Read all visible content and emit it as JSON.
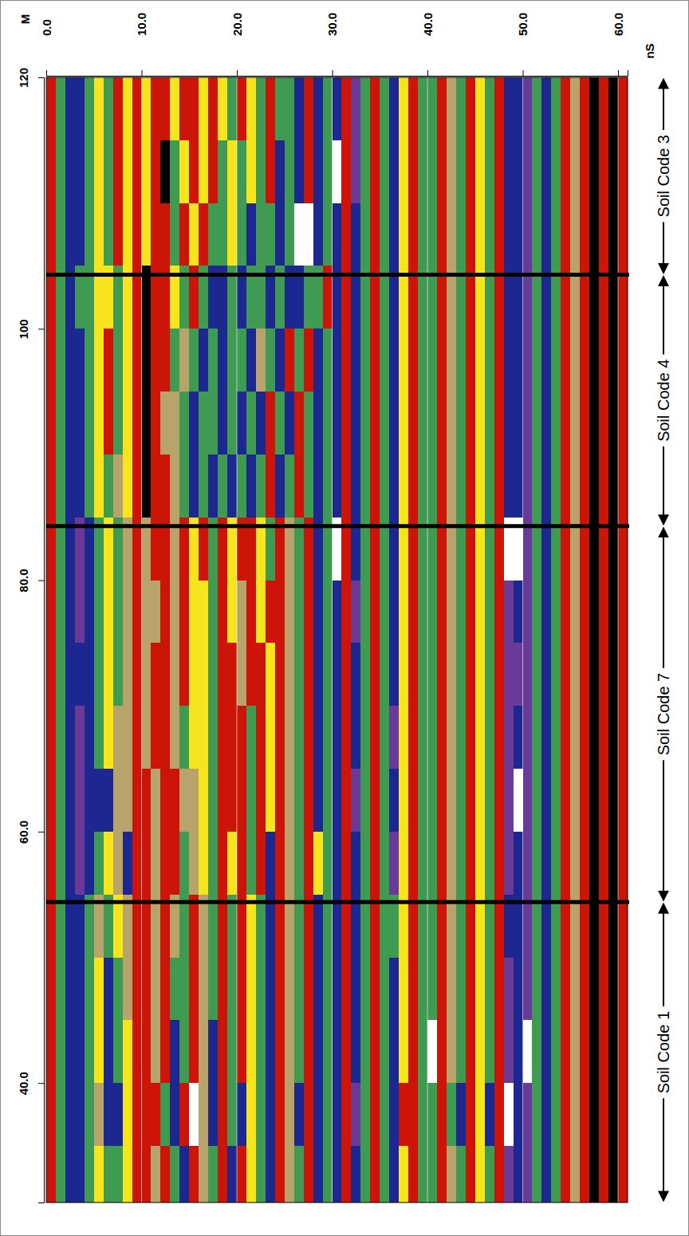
{
  "chart_data": {
    "type": "heatmap",
    "x_label": "nS",
    "y_label": "M",
    "xlim": [
      0,
      61
    ],
    "ylim": [
      30.5,
      120
    ],
    "xticks": [
      {
        "value": 0,
        "label": "0.0"
      },
      {
        "value": 10,
        "label": "10.0"
      },
      {
        "value": 20,
        "label": "20.0"
      },
      {
        "value": 30,
        "label": "30.0"
      },
      {
        "value": 40,
        "label": "40.0"
      },
      {
        "value": 50,
        "label": "50.0"
      },
      {
        "value": 60,
        "label": "60.0"
      }
    ],
    "yticks": [
      {
        "value": 40,
        "label": "40.0"
      },
      {
        "value": 60,
        "label": "60.0"
      },
      {
        "value": 80,
        "label": "80.0"
      },
      100,
      120
    ],
    "grid": true,
    "x_bins": [
      0,
      1,
      2,
      3,
      4,
      5,
      6,
      7,
      8,
      9,
      10,
      11,
      12,
      13,
      14,
      15,
      16,
      17,
      18,
      19,
      20,
      21,
      22,
      23,
      24,
      25,
      26,
      27,
      28,
      29,
      30,
      31,
      32,
      33,
      34,
      35,
      36,
      37,
      38,
      39,
      40,
      41,
      42,
      43,
      44,
      45,
      46,
      47,
      48,
      49,
      50,
      51,
      52,
      53,
      54,
      55,
      56,
      57,
      58,
      59,
      60,
      61
    ],
    "y_bins": [
      30,
      35,
      40,
      45,
      50,
      55,
      60,
      65,
      70,
      75,
      80,
      85,
      90,
      95,
      100,
      105,
      110,
      115,
      120
    ],
    "cells": [
      [
        1,
        4,
        5,
        5,
        4,
        2,
        4,
        4,
        2,
        1,
        1,
        3,
        1,
        4,
        5,
        1,
        3,
        4,
        1,
        5,
        1,
        2,
        4,
        5,
        1,
        3,
        4,
        1,
        5,
        4,
        5,
        1,
        5,
        4,
        1,
        4,
        5,
        2,
        1,
        4,
        4,
        1,
        3,
        4,
        1,
        2,
        4,
        1,
        6,
        5,
        6,
        4,
        5,
        4,
        1,
        3,
        1,
        0,
        1,
        0,
        1
      ],
      [
        1,
        4,
        5,
        5,
        4,
        3,
        5,
        5,
        2,
        1,
        1,
        1,
        4,
        5,
        1,
        7,
        3,
        5,
        1,
        4,
        5,
        2,
        4,
        5,
        1,
        3,
        5,
        1,
        5,
        4,
        5,
        1,
        6,
        4,
        1,
        4,
        5,
        1,
        1,
        4,
        4,
        1,
        4,
        5,
        1,
        2,
        5,
        1,
        7,
        5,
        6,
        4,
        5,
        4,
        1,
        3,
        1,
        0,
        1,
        0,
        1
      ],
      [
        1,
        4,
        5,
        5,
        4,
        2,
        5,
        4,
        2,
        1,
        1,
        3,
        1,
        5,
        4,
        1,
        3,
        5,
        1,
        4,
        1,
        2,
        4,
        5,
        1,
        3,
        4,
        1,
        5,
        4,
        5,
        1,
        5,
        4,
        1,
        4,
        5,
        2,
        1,
        4,
        7,
        1,
        3,
        4,
        1,
        2,
        4,
        1,
        6,
        5,
        7,
        4,
        5,
        4,
        1,
        3,
        1,
        0,
        1,
        0,
        1
      ],
      [
        1,
        4,
        5,
        5,
        4,
        2,
        5,
        4,
        3,
        1,
        1,
        3,
        1,
        4,
        4,
        1,
        3,
        4,
        1,
        4,
        1,
        2,
        4,
        5,
        1,
        3,
        4,
        1,
        5,
        4,
        5,
        1,
        5,
        4,
        1,
        4,
        5,
        2,
        1,
        4,
        4,
        1,
        3,
        4,
        1,
        2,
        4,
        1,
        6,
        5,
        6,
        4,
        5,
        4,
        1,
        3,
        1,
        0,
        1,
        0,
        1
      ],
      [
        1,
        4,
        5,
        5,
        4,
        3,
        4,
        2,
        3,
        1,
        1,
        3,
        1,
        3,
        4,
        1,
        3,
        4,
        1,
        4,
        1,
        2,
        4,
        5,
        1,
        3,
        4,
        1,
        5,
        4,
        5,
        1,
        5,
        4,
        1,
        4,
        4,
        2,
        1,
        4,
        4,
        1,
        3,
        4,
        1,
        2,
        4,
        1,
        5,
        5,
        6,
        4,
        5,
        4,
        1,
        3,
        1,
        0,
        1,
        0,
        1
      ],
      [
        1,
        4,
        5,
        6,
        5,
        4,
        2,
        3,
        5,
        1,
        1,
        3,
        1,
        1,
        4,
        3,
        2,
        4,
        1,
        2,
        1,
        4,
        1,
        5,
        1,
        3,
        4,
        1,
        2,
        4,
        5,
        1,
        5,
        4,
        1,
        4,
        6,
        2,
        1,
        4,
        4,
        1,
        3,
        4,
        1,
        2,
        4,
        1,
        6,
        5,
        6,
        4,
        5,
        4,
        1,
        3,
        1,
        0,
        1,
        0,
        1
      ],
      [
        1,
        4,
        5,
        6,
        5,
        5,
        5,
        3,
        3,
        1,
        1,
        3,
        1,
        1,
        3,
        3,
        2,
        4,
        1,
        1,
        1,
        4,
        1,
        2,
        1,
        3,
        4,
        1,
        5,
        4,
        5,
        1,
        6,
        4,
        1,
        4,
        5,
        2,
        1,
        4,
        4,
        1,
        3,
        4,
        1,
        2,
        4,
        1,
        6,
        7,
        6,
        4,
        5,
        4,
        1,
        3,
        1,
        0,
        1,
        0,
        1
      ],
      [
        1,
        4,
        5,
        6,
        5,
        4,
        2,
        3,
        3,
        1,
        3,
        1,
        1,
        3,
        4,
        2,
        2,
        4,
        1,
        1,
        1,
        4,
        1,
        2,
        1,
        3,
        4,
        1,
        5,
        4,
        5,
        1,
        5,
        4,
        1,
        4,
        6,
        2,
        1,
        4,
        4,
        1,
        3,
        4,
        1,
        2,
        4,
        1,
        6,
        5,
        6,
        4,
        5,
        4,
        1,
        3,
        1,
        0,
        1,
        0,
        1
      ],
      [
        1,
        4,
        5,
        5,
        5,
        4,
        2,
        4,
        3,
        1,
        3,
        1,
        1,
        3,
        1,
        2,
        2,
        4,
        1,
        1,
        3,
        1,
        1,
        2,
        1,
        3,
        4,
        1,
        5,
        4,
        5,
        1,
        5,
        4,
        1,
        4,
        5,
        2,
        1,
        4,
        4,
        1,
        3,
        4,
        1,
        2,
        4,
        1,
        6,
        6,
        6,
        4,
        5,
        4,
        1,
        3,
        1,
        0,
        1,
        0,
        1
      ],
      [
        1,
        4,
        5,
        6,
        5,
        4,
        2,
        4,
        3,
        1,
        3,
        3,
        1,
        3,
        1,
        2,
        2,
        4,
        1,
        2,
        3,
        1,
        2,
        1,
        1,
        3,
        4,
        1,
        5,
        4,
        5,
        1,
        6,
        4,
        1,
        4,
        5,
        2,
        1,
        4,
        4,
        1,
        3,
        4,
        1,
        2,
        4,
        1,
        6,
        5,
        6,
        4,
        5,
        4,
        1,
        3,
        1,
        0,
        1,
        0,
        1
      ],
      [
        1,
        4,
        5,
        6,
        5,
        4,
        2,
        4,
        3,
        1,
        3,
        1,
        1,
        3,
        1,
        2,
        1,
        4,
        1,
        2,
        1,
        1,
        2,
        4,
        1,
        3,
        4,
        1,
        5,
        4,
        7,
        1,
        5,
        4,
        1,
        4,
        5,
        2,
        1,
        4,
        4,
        1,
        3,
        4,
        1,
        2,
        4,
        1,
        7,
        7,
        6,
        4,
        5,
        4,
        1,
        3,
        1,
        0,
        1,
        0,
        1
      ],
      [
        1,
        4,
        5,
        5,
        4,
        2,
        4,
        3,
        2,
        1,
        0,
        1,
        1,
        3,
        4,
        5,
        4,
        5,
        4,
        5,
        4,
        5,
        4,
        1,
        5,
        4,
        1,
        4,
        5,
        4,
        5,
        1,
        5,
        4,
        1,
        4,
        5,
        2,
        1,
        4,
        4,
        1,
        3,
        4,
        1,
        2,
        4,
        1,
        5,
        5,
        6,
        4,
        5,
        4,
        1,
        3,
        1,
        0,
        1,
        0,
        1
      ],
      [
        1,
        4,
        5,
        5,
        4,
        2,
        1,
        4,
        2,
        1,
        0,
        1,
        3,
        3,
        4,
        5,
        4,
        4,
        5,
        4,
        5,
        4,
        5,
        1,
        4,
        5,
        1,
        4,
        5,
        4,
        5,
        1,
        5,
        4,
        1,
        4,
        5,
        2,
        1,
        4,
        4,
        1,
        3,
        4,
        1,
        2,
        4,
        1,
        5,
        5,
        6,
        4,
        5,
        4,
        1,
        3,
        1,
        0,
        1,
        0,
        1
      ],
      [
        1,
        4,
        5,
        5,
        4,
        2,
        1,
        4,
        2,
        1,
        0,
        1,
        1,
        4,
        3,
        4,
        5,
        4,
        5,
        4,
        4,
        5,
        3,
        4,
        5,
        1,
        4,
        1,
        5,
        4,
        5,
        1,
        5,
        4,
        1,
        4,
        5,
        2,
        1,
        4,
        4,
        1,
        3,
        4,
        1,
        2,
        4,
        1,
        5,
        5,
        6,
        4,
        5,
        4,
        1,
        3,
        1,
        0,
        1,
        0,
        1
      ],
      [
        1,
        4,
        5,
        4,
        4,
        2,
        2,
        4,
        2,
        1,
        0,
        1,
        1,
        2,
        4,
        1,
        4,
        5,
        5,
        4,
        5,
        4,
        4,
        5,
        4,
        5,
        5,
        4,
        4,
        1,
        5,
        1,
        5,
        4,
        1,
        4,
        5,
        2,
        1,
        4,
        4,
        1,
        3,
        4,
        1,
        2,
        4,
        1,
        5,
        5,
        6,
        4,
        5,
        4,
        1,
        3,
        1,
        0,
        1,
        0,
        1
      ],
      [
        1,
        4,
        5,
        5,
        4,
        2,
        4,
        1,
        2,
        1,
        2,
        1,
        1,
        4,
        1,
        2,
        1,
        4,
        4,
        2,
        4,
        5,
        4,
        4,
        5,
        4,
        7,
        7,
        5,
        4,
        5,
        1,
        5,
        4,
        1,
        4,
        5,
        2,
        1,
        4,
        4,
        1,
        3,
        4,
        1,
        2,
        4,
        1,
        5,
        5,
        6,
        4,
        5,
        4,
        1,
        3,
        1,
        0,
        1,
        0,
        1
      ],
      [
        1,
        4,
        5,
        5,
        4,
        2,
        4,
        1,
        2,
        1,
        2,
        1,
        0,
        4,
        2,
        1,
        2,
        1,
        4,
        2,
        4,
        2,
        4,
        1,
        5,
        4,
        5,
        1,
        5,
        4,
        7,
        1,
        6,
        4,
        1,
        4,
        5,
        2,
        1,
        4,
        4,
        1,
        3,
        4,
        1,
        2,
        4,
        1,
        5,
        5,
        6,
        4,
        5,
        4,
        1,
        3,
        1,
        0,
        1,
        0,
        1
      ],
      [
        1,
        4,
        5,
        5,
        4,
        2,
        4,
        1,
        2,
        1,
        2,
        1,
        1,
        2,
        1,
        1,
        2,
        1,
        2,
        4,
        1,
        2,
        4,
        1,
        4,
        4,
        5,
        1,
        5,
        4,
        5,
        1,
        6,
        4,
        1,
        4,
        5,
        2,
        1,
        4,
        4,
        1,
        3,
        4,
        1,
        2,
        4,
        1,
        5,
        5,
        6,
        4,
        5,
        4,
        1,
        3,
        1,
        0,
        1,
        0,
        1
      ]
    ],
    "color_scale": {
      "levels": [
        0,
        1,
        2,
        3,
        4,
        5,
        6,
        7
      ],
      "colors": [
        "#000000",
        "#cc1408",
        "#f6e41c",
        "#b8a46a",
        "#3f9a52",
        "#1c2890",
        "#6a3a98",
        "#ffffff"
      ]
    },
    "zones": [
      "Soil Code 1",
      "Soil Code 7",
      "Soil Code 4",
      "Soil Code 3"
    ],
    "zone_boundaries": [
      54.4,
      84.3,
      104.3
    ]
  }
}
